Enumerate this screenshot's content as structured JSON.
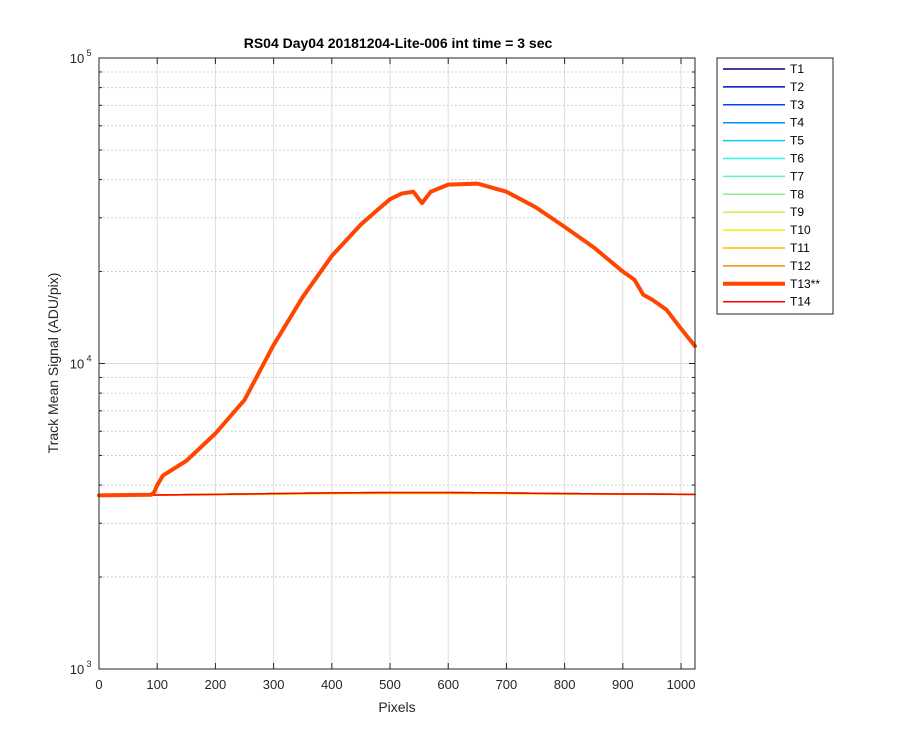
{
  "chart_data": {
    "type": "line",
    "title": "RS04 Day04 20181204-Lite-006 int time = 3 sec",
    "xlabel": "Pixels",
    "ylabel": "Track Mean Signal (ADU/pix)",
    "xlim": [
      0,
      1024
    ],
    "ylim": [
      1000,
      100000
    ],
    "yscale": "log",
    "xticks": [
      0,
      100,
      200,
      300,
      400,
      500,
      600,
      700,
      800,
      900,
      1000
    ],
    "xtick_labels": [
      "0",
      "100",
      "200",
      "300",
      "400",
      "500",
      "600",
      "700",
      "800",
      "900",
      "1000"
    ],
    "yticks": [
      1000,
      10000,
      100000
    ],
    "ytick_labels": [
      {
        "base": "10",
        "exp": "3"
      },
      {
        "base": "10",
        "exp": "4"
      },
      {
        "base": "10",
        "exp": "5"
      }
    ],
    "grid": true,
    "legend_position": "outside-right",
    "series": [
      {
        "name": "T1",
        "color": "#000080",
        "width": 1.5,
        "x": [
          0,
          100,
          200,
          300,
          400,
          500,
          600,
          700,
          800,
          900,
          1024
        ],
        "y": [
          3700,
          3710,
          3730,
          3750,
          3770,
          3780,
          3780,
          3770,
          3750,
          3740,
          3730
        ]
      },
      {
        "name": "T2",
        "color": "#0010c8",
        "width": 1.5,
        "x": [
          0,
          100,
          200,
          300,
          400,
          500,
          600,
          700,
          800,
          900,
          1024
        ],
        "y": [
          3700,
          3710,
          3730,
          3750,
          3770,
          3780,
          3780,
          3770,
          3750,
          3740,
          3730
        ]
      },
      {
        "name": "T3",
        "color": "#0044ff",
        "width": 1.5,
        "x": [
          0,
          100,
          200,
          300,
          400,
          500,
          600,
          700,
          800,
          900,
          1024
        ],
        "y": [
          3700,
          3710,
          3730,
          3750,
          3770,
          3780,
          3780,
          3770,
          3750,
          3740,
          3730
        ]
      },
      {
        "name": "T4",
        "color": "#0090ff",
        "width": 1.5,
        "x": [
          0,
          100,
          200,
          300,
          400,
          500,
          600,
          700,
          800,
          900,
          1024
        ],
        "y": [
          3700,
          3710,
          3730,
          3750,
          3770,
          3780,
          3780,
          3770,
          3750,
          3740,
          3730
        ]
      },
      {
        "name": "T5",
        "color": "#10c8ff",
        "width": 1.5,
        "x": [
          0,
          100,
          200,
          300,
          400,
          500,
          600,
          700,
          800,
          900,
          1024
        ],
        "y": [
          3700,
          3710,
          3730,
          3750,
          3770,
          3780,
          3780,
          3770,
          3750,
          3740,
          3730
        ]
      },
      {
        "name": "T6",
        "color": "#30f0f0",
        "width": 1.5,
        "x": [
          0,
          100,
          200,
          300,
          400,
          500,
          600,
          700,
          800,
          900,
          1024
        ],
        "y": [
          3700,
          3710,
          3730,
          3750,
          3770,
          3780,
          3780,
          3770,
          3750,
          3740,
          3730
        ]
      },
      {
        "name": "T7",
        "color": "#60f0c8",
        "width": 1.5,
        "x": [
          0,
          100,
          200,
          300,
          400,
          500,
          600,
          700,
          800,
          900,
          1024
        ],
        "y": [
          3700,
          3710,
          3730,
          3750,
          3770,
          3780,
          3780,
          3770,
          3750,
          3740,
          3730
        ]
      },
      {
        "name": "T8",
        "color": "#90f090",
        "width": 1.5,
        "x": [
          0,
          100,
          200,
          300,
          400,
          500,
          600,
          700,
          800,
          900,
          1024
        ],
        "y": [
          3700,
          3710,
          3730,
          3750,
          3770,
          3780,
          3780,
          3770,
          3750,
          3740,
          3730
        ]
      },
      {
        "name": "T9",
        "color": "#c8f050",
        "width": 1.5,
        "x": [
          0,
          100,
          200,
          300,
          400,
          500,
          600,
          700,
          800,
          900,
          1024
        ],
        "y": [
          3700,
          3710,
          3730,
          3750,
          3770,
          3780,
          3780,
          3770,
          3750,
          3740,
          3730
        ]
      },
      {
        "name": "T10",
        "color": "#f0f000",
        "width": 1.5,
        "x": [
          0,
          100,
          200,
          300,
          400,
          500,
          600,
          700,
          800,
          900,
          1024
        ],
        "y": [
          3700,
          3705,
          3715,
          3730,
          3745,
          3750,
          3750,
          3745,
          3735,
          3730,
          3725
        ]
      },
      {
        "name": "T11",
        "color": "#ffc000",
        "width": 1.5,
        "x": [
          0,
          100,
          200,
          300,
          400,
          500,
          600,
          700,
          800,
          900,
          1024
        ],
        "y": [
          3700,
          3708,
          3725,
          3745,
          3760,
          3770,
          3770,
          3760,
          3745,
          3735,
          3728
        ]
      },
      {
        "name": "T12",
        "color": "#ff8c00",
        "width": 1.5,
        "x": [
          0,
          100,
          200,
          300,
          400,
          500,
          600,
          700,
          800,
          900,
          1024
        ],
        "y": [
          3700,
          3710,
          3730,
          3750,
          3770,
          3780,
          3780,
          3770,
          3750,
          3740,
          3730
        ]
      },
      {
        "name": "T13**",
        "color": "#ff4500",
        "width": 4,
        "x": [
          0,
          90,
          95,
          100,
          110,
          150,
          200,
          250,
          300,
          350,
          400,
          450,
          480,
          500,
          520,
          540,
          555,
          570,
          600,
          650,
          700,
          750,
          800,
          850,
          900,
          920,
          935,
          950,
          975,
          1000,
          1024
        ],
        "y": [
          3700,
          3720,
          3800,
          4000,
          4300,
          4800,
          5900,
          7600,
          11500,
          16500,
          22500,
          28500,
          32000,
          34500,
          36000,
          36500,
          33500,
          36500,
          38500,
          38800,
          36500,
          32500,
          28000,
          24000,
          20000,
          18800,
          16800,
          16200,
          15000,
          13000,
          11400
        ]
      },
      {
        "name": "T14",
        "color": "#ff0000",
        "width": 1.5,
        "x": [
          0,
          100,
          200,
          300,
          400,
          500,
          600,
          700,
          800,
          900,
          1024
        ],
        "y": [
          3700,
          3710,
          3730,
          3750,
          3770,
          3780,
          3780,
          3770,
          3750,
          3740,
          3730
        ]
      }
    ]
  }
}
